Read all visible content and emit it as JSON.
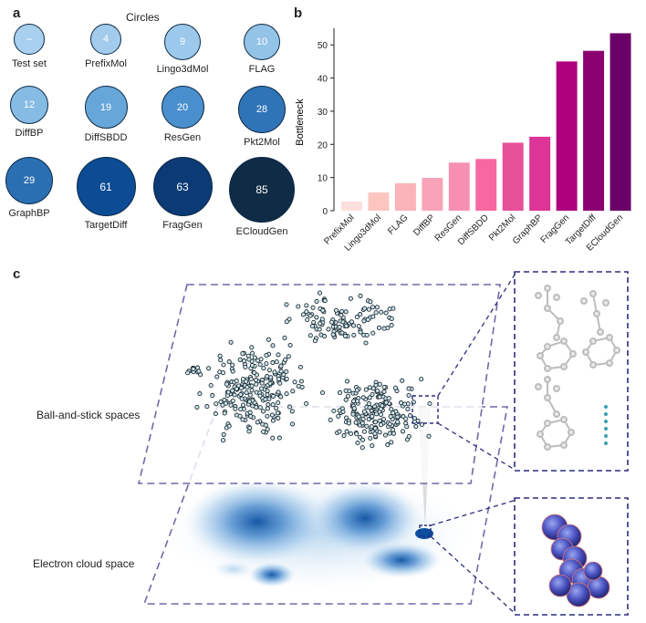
{
  "panels": {
    "a": "a",
    "b": "b",
    "c": "c"
  },
  "panel_a": {
    "title": "Circles",
    "circles": [
      {
        "label": "Test set",
        "value": "–",
        "color": "#a9d0ee"
      },
      {
        "label": "PrefixMol",
        "value": "4",
        "color": "#a3cbec"
      },
      {
        "label": "Lingo3dMol",
        "value": "9",
        "color": "#9cc8eb"
      },
      {
        "label": "FLAG",
        "value": "10",
        "color": "#94c3e8"
      },
      {
        "label": "DiffBP",
        "value": "12",
        "color": "#86bbe4"
      },
      {
        "label": "DiffSBDD",
        "value": "19",
        "color": "#67a6d8"
      },
      {
        "label": "ResGen",
        "value": "20",
        "color": "#4a8fcd"
      },
      {
        "label": "Pkt2Mol",
        "value": "28",
        "color": "#2f74b7"
      },
      {
        "label": "GraphBP",
        "value": "29",
        "color": "#2b6fb3"
      },
      {
        "label": "TargetDiff",
        "value": "61",
        "color": "#0c4c95"
      },
      {
        "label": "FragGen",
        "value": "63",
        "color": "#0b3a75"
      },
      {
        "label": "ECloudGen",
        "value": "85",
        "color": "#0f2b45"
      }
    ]
  },
  "chart_data": {
    "type": "bar",
    "ylabel": "Bottleneck",
    "ylim": [
      0,
      55
    ],
    "yticks": [
      0,
      10,
      20,
      30,
      40,
      50
    ],
    "categories": [
      "PrefixMol",
      "Lingo3dMol",
      "FLAG",
      "DiffBP",
      "ResGen",
      "DiffSBDD",
      "Pkt2Mol",
      "GraphBP",
      "FragGen",
      "TargetDiff",
      "ECloudGen"
    ],
    "values": [
      2.8,
      5.5,
      8.3,
      9.9,
      14.5,
      15.6,
      20.5,
      22.3,
      45.0,
      48.2,
      53.5
    ],
    "colors": [
      "#fde0dd",
      "#fcc5c0",
      "#fbb4b9",
      "#f9a3ba",
      "#f78fb3",
      "#f768a1",
      "#e7519a",
      "#dd3497",
      "#ae017e",
      "#8c0172",
      "#6b0068"
    ]
  },
  "panel_c": {
    "ball_stick_label": "Ball-and-stick spaces",
    "electron_cloud_label": "Electron cloud space"
  }
}
